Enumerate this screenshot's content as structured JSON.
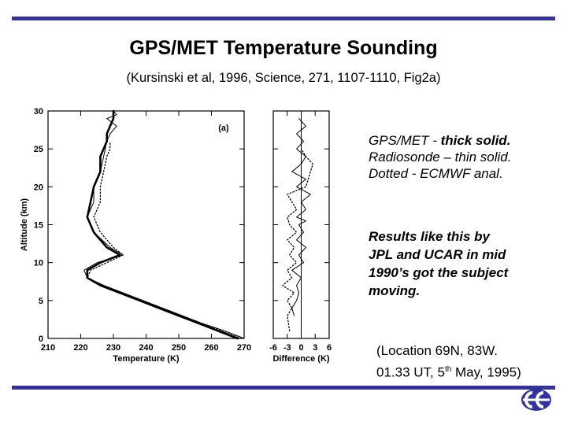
{
  "colors": {
    "accent": "#3333a0",
    "ink": "#000000"
  },
  "header": {
    "title": "GPS/MET Temperature Sounding",
    "subtitle": "(Kursinski et al, 1996, Science, 271, 1107-1110, Fig2a)"
  },
  "legend_text": {
    "line1_a": "GPS/MET - ",
    "line1_b": "thick solid.",
    "line2": "Radiosonde – thin solid.",
    "line3": "Dotted - ECMWF anal."
  },
  "results_text": [
    "Results like this by",
    "JPL and UCAR in mid",
    "1990’s got the subject",
    "moving."
  ],
  "location_text": {
    "line1": "(Location 69N, 83W.",
    "line2a": "01.33 UT, 5",
    "line2sup": "th",
    "line2b": " May, 1995)"
  },
  "logo_icon": "ecmwf-logo-icon",
  "chart_data": [
    {
      "type": "line",
      "panel_label": "(a)",
      "xlabel": "Temperature (K)",
      "ylabel": "Altitude (km)",
      "xlim": [
        210,
        270
      ],
      "ylim": [
        0,
        30
      ],
      "xticks": [
        210,
        220,
        230,
        240,
        250,
        260,
        270
      ],
      "yticks": [
        0,
        5,
        10,
        15,
        20,
        25,
        30
      ],
      "series": [
        {
          "style": "thick-solid",
          "x": [
            268,
            262,
            256,
            250,
            244,
            238,
            232,
            226,
            222,
            222,
            226,
            232,
            228,
            224,
            222,
            223,
            224,
            226,
            226,
            228,
            228,
            229,
            230,
            230,
            230
          ],
          "y": [
            0,
            1,
            2,
            3,
            4,
            5,
            6,
            7,
            8,
            9,
            10,
            11,
            12,
            14,
            16,
            18,
            20,
            22,
            24,
            26,
            27,
            28,
            29,
            29.5,
            30
          ]
        },
        {
          "style": "thin-solid",
          "x": [
            270,
            264,
            257,
            251,
            245,
            239,
            233,
            227,
            222,
            221,
            225,
            233,
            229,
            224,
            222,
            224,
            224,
            226,
            227,
            228,
            229,
            231,
            228,
            231,
            230
          ],
          "y": [
            0,
            1,
            2,
            3,
            4,
            5,
            6,
            7,
            8,
            9,
            10,
            11,
            12,
            14,
            16,
            18,
            20,
            22,
            24,
            26,
            27,
            28,
            29,
            29.5,
            30
          ]
        },
        {
          "style": "dotted",
          "x": [
            269,
            263,
            257,
            251,
            245,
            239,
            233,
            227,
            222,
            223,
            228,
            233,
            230,
            226,
            224,
            226,
            226,
            227,
            228,
            229,
            229
          ],
          "y": [
            0,
            1,
            2,
            3,
            4,
            5,
            6,
            7,
            8,
            9,
            10,
            11,
            12,
            14,
            16,
            18,
            20,
            22,
            24,
            25,
            26
          ]
        }
      ]
    },
    {
      "type": "line",
      "xlabel": "Difference (K)",
      "ylabel": "",
      "xlim": [
        -6,
        6
      ],
      "ylim": [
        0,
        30
      ],
      "xticks": [
        -6,
        -3,
        0,
        3,
        6
      ],
      "yticks": [
        0,
        5,
        10,
        15,
        20,
        25,
        30
      ],
      "series": [
        {
          "style": "zero-line",
          "x": [
            0,
            0
          ],
          "y": [
            0,
            30
          ]
        },
        {
          "style": "thin-solid",
          "x": [
            -1.5,
            -2,
            -1,
            -0.5,
            -1,
            0,
            -2,
            0.5,
            -0.5,
            1,
            -1,
            0.5,
            -0.5,
            1,
            -1,
            1,
            0,
            2,
            -1,
            1,
            -2,
            0,
            1,
            -1,
            0.5,
            -1,
            1,
            -0.5
          ],
          "y": [
            3,
            4,
            5,
            6,
            7,
            8,
            9,
            10,
            11,
            12,
            13,
            14,
            15,
            15.5,
            16,
            17,
            18,
            19,
            20,
            21,
            22,
            23,
            24,
            25,
            26,
            27,
            28,
            29
          ]
        },
        {
          "style": "dotted",
          "x": [
            -2.5,
            -3,
            -2,
            -3,
            -1.5,
            -4,
            -2,
            -3,
            -1,
            -2.5,
            -1.5,
            -3,
            -1,
            -2.5,
            -3,
            -1,
            -3,
            1,
            1.5,
            2,
            2.5,
            1,
            0
          ],
          "y": [
            1,
            3,
            4,
            5,
            6,
            7,
            8,
            9,
            10,
            11,
            12,
            13,
            14,
            15,
            16,
            17,
            19,
            20,
            21,
            22,
            23,
            24,
            25
          ]
        }
      ]
    }
  ]
}
